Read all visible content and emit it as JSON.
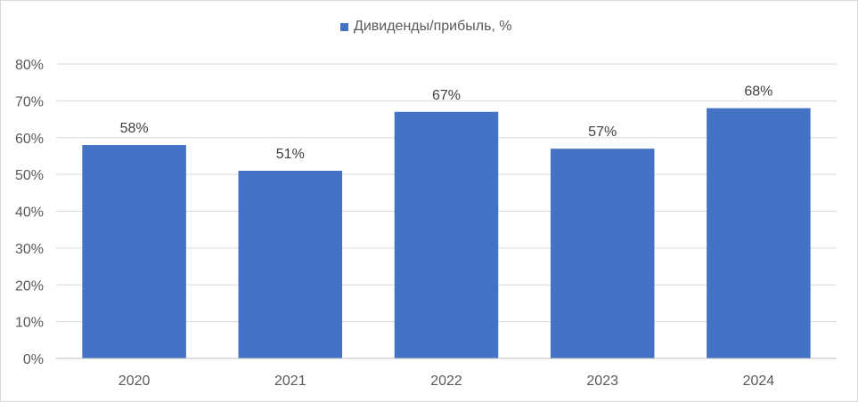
{
  "chart_data": {
    "type": "bar",
    "categories": [
      "2020",
      "2021",
      "2022",
      "2023",
      "2024"
    ],
    "series": [
      {
        "name": "Дивиденды/прибыль, %",
        "values": [
          58,
          51,
          67,
          57,
          68
        ],
        "labels": [
          "58%",
          "51%",
          "67%",
          "57%",
          "68%"
        ],
        "color": "#4472c4"
      }
    ],
    "y_ticks": [
      "0%",
      "10%",
      "20%",
      "30%",
      "40%",
      "50%",
      "60%",
      "70%",
      "80%"
    ],
    "ylim": [
      0,
      80
    ],
    "grid": true,
    "legend_position": "top-center",
    "title": "",
    "xlabel": "",
    "ylabel": ""
  },
  "colors": {
    "gridline": "#d9d9d9",
    "axis_line": "#bfbfbf",
    "tick_text": "#595959",
    "label_text": "#404040"
  }
}
